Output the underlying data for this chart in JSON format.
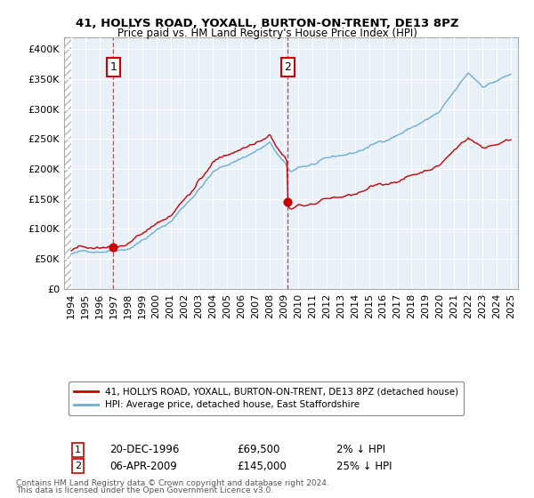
{
  "title1": "41, HOLLYS ROAD, YOXALL, BURTON-ON-TRENT, DE13 8PZ",
  "title2": "Price paid vs. HM Land Registry's House Price Index (HPI)",
  "legend_line1": "41, HOLLYS ROAD, YOXALL, BURTON-ON-TRENT, DE13 8PZ (detached house)",
  "legend_line2": "HPI: Average price, detached house, East Staffordshire",
  "annotation1_label": "1",
  "annotation1_date": "20-DEC-1996",
  "annotation1_price": "£69,500",
  "annotation1_hpi": "2% ↓ HPI",
  "annotation2_label": "2",
  "annotation2_date": "06-APR-2009",
  "annotation2_price": "£145,000",
  "annotation2_hpi": "25% ↓ HPI",
  "footer1": "Contains HM Land Registry data © Crown copyright and database right 2024.",
  "footer2": "This data is licensed under the Open Government Licence v3.0.",
  "sale1_year": 1996.97,
  "sale1_price": 69500,
  "sale2_year": 2009.27,
  "sale2_price": 145000,
  "hpi_color": "#6baed6",
  "price_color": "#cc0000",
  "sale_dot_color": "#cc0000",
  "bg_chart": "#e8f0f8",
  "hatch_color": "#d0d8e8",
  "grid_color": "#ffffff",
  "annotation_box_color": "#cc0000",
  "ylim_min": 0,
  "ylim_max": 420000,
  "xlim_min": 1993.5,
  "xlim_max": 2025.5
}
